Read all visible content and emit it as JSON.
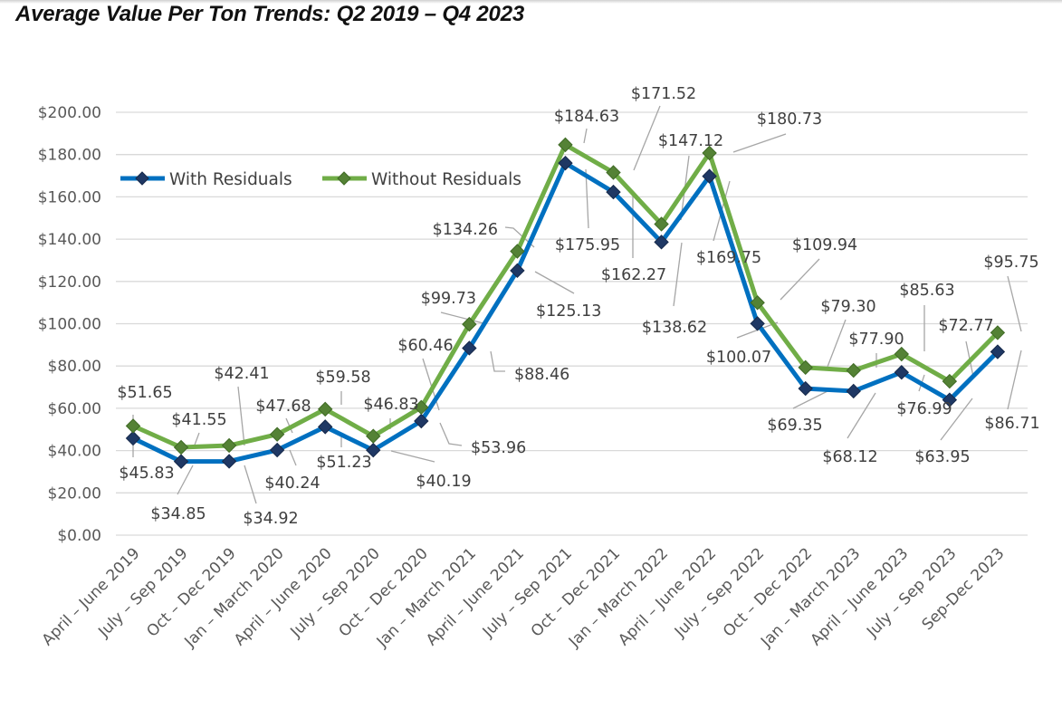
{
  "chart_data": {
    "type": "line",
    "title": "Average Value Per Ton Trends: Q2 2019 – Q4 2023",
    "xlabel": "",
    "ylabel": "",
    "ylim": [
      0,
      200
    ],
    "y_ticks": [
      "$0.00",
      "$20.00",
      "$40.00",
      "$60.00",
      "$80.00",
      "$100.00",
      "$120.00",
      "$140.00",
      "$160.00",
      "$180.00",
      "$200.00"
    ],
    "y_tick_values": [
      0,
      20,
      40,
      60,
      80,
      100,
      120,
      140,
      160,
      180,
      200
    ],
    "grid": true,
    "legend_position": "top-left",
    "categories": [
      "April – June 2019",
      "July – Sep 2019",
      "Oct – Dec 2019",
      "Jan – March 2020",
      "April – June 2020",
      "July – Sep 2020",
      "Oct – Dec 2020",
      "Jan – March 2021",
      "April – June 2021",
      "July – Sep 2021",
      "Oct – Dec 2021",
      "Jan – March 2022",
      "April – June 2022",
      "July – Sep 2022",
      "Oct – Dec 2022",
      "Jan – March 2023",
      "April – June 2023",
      "July – Sep 2023",
      "Sep-Dec 2023"
    ],
    "series": [
      {
        "name": "With Residuals",
        "color": "#0070C0",
        "marker_color": "#1F3864",
        "values": [
          45.83,
          34.85,
          34.92,
          40.24,
          51.23,
          40.19,
          53.96,
          88.46,
          125.13,
          175.95,
          162.27,
          138.62,
          169.75,
          100.07,
          69.35,
          68.12,
          76.99,
          63.95,
          86.71
        ],
        "labels": [
          "$45.83",
          "$34.85",
          "$34.92",
          "$40.24",
          "$51.23",
          "$40.19",
          "$53.96",
          "$88.46",
          "$125.13",
          "$175.95",
          "$162.27",
          "$138.62",
          "$169.75",
          "$100.07",
          "$69.35",
          "$68.12",
          "$76.99",
          "$63.95",
          "$86.71"
        ]
      },
      {
        "name": "Without Residuals",
        "color": "#70AD47",
        "marker_color": "#548235",
        "values": [
          51.65,
          41.55,
          42.41,
          47.68,
          59.58,
          46.83,
          60.46,
          99.73,
          134.26,
          184.63,
          171.52,
          147.12,
          180.73,
          109.94,
          79.3,
          77.9,
          85.63,
          72.77,
          95.75
        ],
        "labels": [
          "$51.65",
          "$41.55",
          "$42.41",
          "$47.68",
          "$59.58",
          "$46.83",
          "$60.46",
          "$99.73",
          "$134.26",
          "$184.63",
          "$171.52",
          "$147.12",
          "$180.73",
          "$109.94",
          "$79.30",
          "$77.90",
          "$85.63",
          "$72.77",
          "$95.75"
        ]
      }
    ]
  }
}
